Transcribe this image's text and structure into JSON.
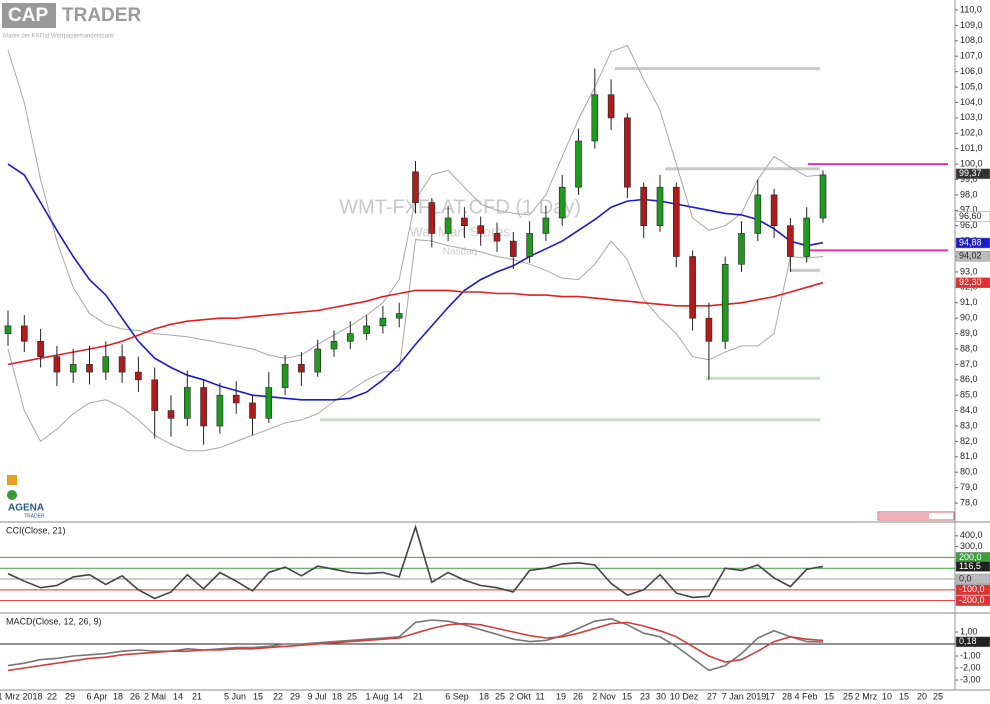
{
  "logo": {
    "brand_left": "CAP",
    "brand_right": "TRADER",
    "tagline": "Marke der FXFlat Wertpapierhandelsbank",
    "footer_logo": "AGENA",
    "footer_logo_sub": "TRADER"
  },
  "x_labels": [
    "1 Mrz 2018",
    "22",
    "29",
    "6 Apr",
    "18",
    "26",
    "2 Mai",
    "14",
    "21",
    "5 Jun",
    "15",
    "22",
    "29",
    "9 Jul",
    "18",
    "25",
    "1 Aug",
    "14",
    "21",
    "6 Sep",
    "18",
    "25",
    "2 Okt",
    "11",
    "19",
    "26",
    "2 Nov",
    "15",
    "23",
    "30",
    "10 Dez",
    "27",
    "7 Jan 2019",
    "17",
    "28",
    "4 Feb",
    "15",
    "25",
    "2 Mrz",
    "10",
    "15",
    "20",
    "25"
  ],
  "chart_data": [
    {
      "type": "candlestick",
      "title": "WMT-FXFLAT.CFD (1 Day)",
      "subtitle": "Wal-Mart Stores",
      "exchange": "Nasdaq",
      "up_color": "#1f9a1f",
      "down_color": "#b01c1c",
      "open": [
        89,
        89.5,
        88.5,
        87.5,
        86.5,
        87,
        86.5,
        87.5,
        86.5,
        86,
        84,
        83.5,
        85.5,
        83,
        85,
        84.5,
        83.5,
        85.5,
        87,
        86.5,
        88,
        88.5,
        89,
        89.5,
        90,
        99.5,
        97.5,
        95.5,
        96.5,
        96,
        95.5,
        95,
        94,
        95.5,
        96.5,
        98.5,
        101.5,
        104.5,
        103,
        98.5,
        96,
        98.5,
        94,
        90,
        88.5,
        93.5,
        95.5,
        98,
        96,
        94,
        96.5
      ],
      "high": [
        90.5,
        90.2,
        89.3,
        88.2,
        88,
        88.2,
        88.5,
        88.3,
        87.5,
        86.8,
        85,
        86.6,
        86,
        85.8,
        85.9,
        85,
        86.5,
        87.6,
        87.8,
        88.6,
        89.2,
        89.8,
        90.2,
        90.8,
        91,
        100.2,
        97.8,
        97.3,
        97.2,
        96.6,
        96.2,
        95.6,
        96.3,
        97.3,
        99.3,
        102.3,
        106.2,
        105.5,
        103.3,
        98.8,
        99.3,
        98.8,
        94.4,
        91,
        94,
        96.3,
        99,
        98.4,
        96.5,
        97.2,
        99.6
      ],
      "low": [
        88.2,
        87.8,
        86.8,
        85.6,
        85.8,
        85.7,
        86,
        85.8,
        85.2,
        82.2,
        82.3,
        83,
        81.8,
        82.5,
        83.8,
        82.4,
        83.2,
        85,
        85.6,
        86.2,
        87.5,
        88,
        88.6,
        89,
        89.4,
        96.8,
        94.6,
        95,
        95.2,
        94.7,
        94.3,
        93.2,
        93.6,
        95,
        96,
        98,
        101,
        102.2,
        97.8,
        95.2,
        95.6,
        93.3,
        89.2,
        86,
        88,
        93,
        95,
        95.2,
        93,
        93.6,
        96.2
      ],
      "close": [
        89.5,
        88.5,
        87.5,
        86.5,
        87,
        86.5,
        87.5,
        86.5,
        86,
        84,
        83.5,
        85.5,
        83,
        85,
        84.5,
        83.5,
        85.5,
        87,
        86.5,
        88,
        88.5,
        89,
        89.5,
        90,
        90.3,
        97.5,
        95.5,
        96.5,
        96,
        95.5,
        95,
        94,
        95.5,
        96.5,
        98.5,
        101.5,
        104.5,
        103,
        98.5,
        96,
        98.5,
        94,
        90,
        88.5,
        93.5,
        95.5,
        98,
        96,
        94,
        96.5,
        99.3
      ],
      "series": [
        {
          "color": "#a8a8a8",
          "values": [
            107.4,
            104,
            99,
            95,
            92,
            90.3,
            89.6,
            89.3,
            89.2,
            89,
            88.9,
            88.8,
            88.6,
            88.4,
            88.2,
            88,
            87.6,
            87.4,
            87.6,
            88.3,
            88.9,
            89.5,
            90.2,
            91,
            92.5,
            97.7,
            99.3,
            99.6,
            98.5,
            97.4,
            97,
            96.8,
            96.7,
            98,
            100.5,
            102.9,
            105,
            107.3,
            107.7,
            105.5,
            103.5,
            100,
            96.5,
            95.7,
            96,
            96.8,
            99,
            100.5,
            99.8,
            99.2,
            99.3
          ]
        },
        {
          "color": "#a8a8a8",
          "values": [
            88,
            84,
            82,
            82.8,
            83.8,
            84.5,
            84.7,
            84.2,
            83.4,
            82.4,
            81.8,
            81.4,
            81.4,
            81.6,
            82,
            82.4,
            82.8,
            83.2,
            83.4,
            83.8,
            84.6,
            85.3,
            86,
            86.5,
            86.6,
            95.1,
            95,
            94.7,
            94.5,
            94.3,
            94,
            93.8,
            93.5,
            93.1,
            92.6,
            92.5,
            93.5,
            95,
            93.8,
            91.2,
            90,
            89,
            87.5,
            87.3,
            87.8,
            88.2,
            88.2,
            89,
            94,
            93.9,
            94
          ]
        },
        {
          "color": "#1c1cc8",
          "values": [
            100,
            99.3,
            97.5,
            95.7,
            94,
            92.5,
            91.5,
            90,
            88.5,
            87.4,
            86.8,
            86.3,
            86,
            85.6,
            85.3,
            85,
            84.9,
            84.8,
            84.7,
            84.7,
            84.7,
            84.8,
            85.2,
            86,
            87,
            88.3,
            89.5,
            90.7,
            91.8,
            92.5,
            93,
            93.4,
            94,
            94.5,
            95,
            95.7,
            96.4,
            97.2,
            97.6,
            97.7,
            97.6,
            97.4,
            97.2,
            97,
            96.8,
            96.7,
            96.4,
            95.8,
            95,
            94.7,
            94.9
          ]
        },
        {
          "color": "#e02020",
          "values": [
            87,
            87.2,
            87.4,
            87.6,
            87.8,
            88,
            88.2,
            88.5,
            88.9,
            89.3,
            89.6,
            89.8,
            89.9,
            90,
            90,
            90.1,
            90.2,
            90.3,
            90.4,
            90.5,
            90.7,
            90.9,
            91.1,
            91.4,
            91.6,
            91.8,
            91.8,
            91.8,
            91.7,
            91.7,
            91.6,
            91.6,
            91.5,
            91.5,
            91.4,
            91.4,
            91.3,
            91.2,
            91.1,
            91,
            90.9,
            90.8,
            90.8,
            90.8,
            90.9,
            91,
            91.2,
            91.4,
            91.7,
            92,
            92.3
          ]
        }
      ],
      "levels": [
        {
          "value": 106.2,
          "color": "#c8c8c8"
        },
        {
          "value": 99.7,
          "color": "#c8c8c8"
        },
        {
          "value": 93.1,
          "color": "#c8c8c8"
        },
        {
          "value": 86.1,
          "color": "#c8dcc8"
        },
        {
          "value": 83.4,
          "color": "#c8dcc8"
        }
      ],
      "alert_lines": [
        {
          "value": 100,
          "color": "#e030b0"
        },
        {
          "value": 94.4,
          "color": "#e030b0"
        }
      ],
      "ylim": [
        76.9,
        110.65
      ],
      "yticks": [
        {
          "value": 110,
          "label": "110,0"
        },
        {
          "value": 109,
          "label": "109,0"
        },
        {
          "value": 108,
          "label": "108,0"
        },
        {
          "value": 107,
          "label": "107,0"
        },
        {
          "value": 106,
          "label": "106,0"
        },
        {
          "value": 105,
          "label": "105,0"
        },
        {
          "value": 104,
          "label": "104,0"
        },
        {
          "value": 103,
          "label": "103,0"
        },
        {
          "value": 102,
          "label": "102,0"
        },
        {
          "value": 101,
          "label": "101,0"
        },
        {
          "value": 100,
          "label": "100,0"
        },
        {
          "value": 99,
          "label": "99,0"
        },
        {
          "value": 98,
          "label": "98,0"
        },
        {
          "value": 97,
          "label": "97,0"
        },
        {
          "value": 96,
          "label": "96,0"
        },
        {
          "value": 95,
          "label": "95,0"
        },
        {
          "value": 94,
          "label": "94,0"
        },
        {
          "value": 93,
          "label": "93,0"
        },
        {
          "value": 92,
          "label": "92,0"
        },
        {
          "value": 91,
          "label": "91,0"
        },
        {
          "value": 90,
          "label": "90,0"
        },
        {
          "value": 89,
          "label": "89,0"
        },
        {
          "value": 88,
          "label": "88,0"
        },
        {
          "value": 87,
          "label": "87,0"
        },
        {
          "value": 86,
          "label": "86,0"
        },
        {
          "value": 85,
          "label": "85,0"
        },
        {
          "value": 84,
          "label": "84,0"
        },
        {
          "value": 83,
          "label": "83,0"
        },
        {
          "value": 82,
          "label": "82,0"
        },
        {
          "value": 81,
          "label": "81,0"
        },
        {
          "value": 80,
          "label": "80,0"
        },
        {
          "value": 79,
          "label": "79,0"
        },
        {
          "value": 78,
          "label": "78,0"
        }
      ],
      "axis_tags": [
        {
          "value": 99.37,
          "label": "99,37",
          "bg": "#333333",
          "fg": "#ffffff"
        },
        {
          "value": 96.6,
          "label": "96,60",
          "bg": "#ffffff",
          "fg": "#222222"
        },
        {
          "value": 94.88,
          "label": "94,88",
          "bg": "#1c1cc8",
          "fg": "#ffffff"
        },
        {
          "value": 94.02,
          "label": "94,02",
          "bg": "#bbbbbb",
          "fg": "#222222"
        },
        {
          "value": 92.3,
          "label": "92,30",
          "bg": "#e03030",
          "fg": "#ffffff"
        }
      ]
    },
    {
      "type": "line",
      "title": "CCI(Close, 21)",
      "series": [
        {
          "color": "#444444",
          "values": [
            50,
            -20,
            -80,
            -60,
            20,
            40,
            -50,
            30,
            -100,
            -180,
            -120,
            40,
            -90,
            60,
            -20,
            -110,
            60,
            110,
            30,
            120,
            90,
            60,
            50,
            60,
            20,
            480,
            -30,
            60,
            -10,
            -60,
            -80,
            -120,
            80,
            100,
            140,
            150,
            130,
            -40,
            -150,
            -100,
            40,
            -130,
            -170,
            -160,
            100,
            80,
            130,
            10,
            -70,
            90,
            116.5
          ]
        }
      ],
      "levels": [
        {
          "value": 200,
          "color": "#3aa03a"
        },
        {
          "value": 100,
          "color": "#3aa03a"
        },
        {
          "value": 0,
          "color": "#999999"
        },
        {
          "value": -100,
          "color": "#e03030"
        },
        {
          "value": -200,
          "color": "#e03030"
        }
      ],
      "ylim": [
        -305,
        509
      ],
      "yticks": [
        {
          "value": 400,
          "label": "400,0"
        },
        {
          "value": 300,
          "label": "300,0"
        }
      ],
      "axis_tags": [
        {
          "value": 200,
          "label": "200,0",
          "bg": "#3aa03a",
          "fg": "#ffffff"
        },
        {
          "value": 116.5,
          "label": "116,5",
          "bg": "#222222",
          "fg": "#ffffff"
        },
        {
          "value": 0,
          "label": "0,0",
          "bg": "#bbbbbb",
          "fg": "#222222"
        },
        {
          "value": -100,
          "label": "-100,0",
          "bg": "#e03030",
          "fg": "#ffffff"
        },
        {
          "value": -200,
          "label": "-200,0",
          "bg": "#e03030",
          "fg": "#ffffff"
        }
      ]
    },
    {
      "type": "line",
      "title": "MACD(Close, 12, 26, 9)",
      "series": [
        {
          "color": "#777777",
          "values": [
            -1.8,
            -1.6,
            -1.3,
            -1.2,
            -1,
            -0.9,
            -0.8,
            -0.6,
            -0.5,
            -0.6,
            -0.6,
            -0.4,
            -0.5,
            -0.4,
            -0.3,
            -0.3,
            -0.2,
            0,
            0,
            0.1,
            0.2,
            0.3,
            0.4,
            0.5,
            0.6,
            1.8,
            2,
            1.9,
            1.6,
            1.2,
            0.8,
            0.4,
            0.2,
            0.3,
            0.7,
            1.3,
            1.9,
            2.1,
            1.6,
            0.9,
            0.6,
            -0.2,
            -1.2,
            -2.2,
            -1.8,
            -0.8,
            0.5,
            1.1,
            0.6,
            0.2,
            0.18
          ]
        },
        {
          "color": "#d04040",
          "values": [
            -2.2,
            -2,
            -1.8,
            -1.6,
            -1.4,
            -1.2,
            -1.1,
            -0.9,
            -0.8,
            -0.7,
            -0.6,
            -0.6,
            -0.5,
            -0.5,
            -0.4,
            -0.4,
            -0.3,
            -0.2,
            -0.1,
            0,
            0.1,
            0.2,
            0.3,
            0.4,
            0.5,
            0.9,
            1.3,
            1.6,
            1.7,
            1.6,
            1.3,
            1,
            0.7,
            0.5,
            0.6,
            0.9,
            1.3,
            1.7,
            1.8,
            1.5,
            1.1,
            0.6,
            -0.2,
            -1,
            -1.5,
            -1.3,
            -0.6,
            0.2,
            0.6,
            0.4,
            0.3
          ]
        }
      ],
      "levels": [
        {
          "value": 0,
          "color": "#222222"
        }
      ],
      "ylim": [
        -3.83,
        2.5
      ],
      "yticks": [
        {
          "value": 1,
          "label": "1,00"
        },
        {
          "value": -1,
          "label": "-1,00"
        },
        {
          "value": -2,
          "label": "-2,00"
        },
        {
          "value": -3,
          "label": "-3,00"
        }
      ],
      "axis_tags": [
        {
          "value": 0.18,
          "label": "0,18",
          "bg": "#222222",
          "fg": "#ffffff"
        }
      ]
    }
  ]
}
